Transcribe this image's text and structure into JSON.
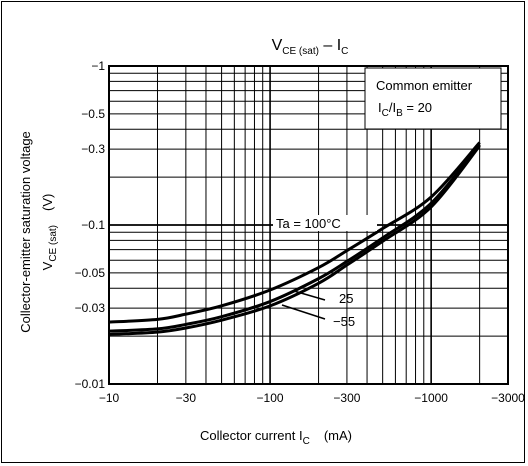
{
  "chart_data": {
    "type": "line",
    "title_main": "V",
    "title_sub": "CE (sat)",
    "title_rest": " – I",
    "title_sub2": "C",
    "xlabel_main": "Collector current  I",
    "xlabel_sub": "C",
    "xlabel_unit": "(mA)",
    "ylabel_line1": "Collector-emitter saturation voltage",
    "ylabel_line2_main": "V",
    "ylabel_line2_sub": "CE (sat)",
    "ylabel_line2_unit": "(V)",
    "x_scale": "log",
    "y_scale": "log",
    "xlim": [
      -10,
      -3000
    ],
    "ylim": [
      -0.01,
      -1
    ],
    "x_ticks": [
      {
        "value": -10,
        "label": "−10"
      },
      {
        "value": -30,
        "label": "−30"
      },
      {
        "value": -100,
        "label": "−100"
      },
      {
        "value": -300,
        "label": "−300"
      },
      {
        "value": -1000,
        "label": "−1000"
      },
      {
        "value": -3000,
        "label": "−3000"
      }
    ],
    "y_ticks": [
      {
        "value": -1,
        "label": "−1"
      },
      {
        "value": -0.5,
        "label": "−0.5"
      },
      {
        "value": -0.3,
        "label": "−0.3"
      },
      {
        "value": -0.1,
        "label": "−0.1"
      },
      {
        "value": -0.05,
        "label": "−0.05"
      },
      {
        "value": -0.03,
        "label": "−0.03"
      },
      {
        "value": -0.01,
        "label": "−0.01"
      }
    ],
    "grid": true,
    "legend_box": {
      "line1": "Common emitter",
      "line2_a": "I",
      "line2_b": "C",
      "line2_c": "/I",
      "line2_d": "B",
      "line2_e": " = 20"
    },
    "series": [
      {
        "name": "Ta = 100°C",
        "x": [
          -10,
          -20,
          -30,
          -50,
          -100,
          -200,
          -300,
          -500,
          -1000,
          -2000
        ],
        "y": [
          -0.0245,
          -0.0255,
          -0.0275,
          -0.031,
          -0.039,
          -0.054,
          -0.069,
          -0.095,
          -0.15,
          -0.33
        ]
      },
      {
        "name": "25",
        "x": [
          -10,
          -20,
          -30,
          -50,
          -100,
          -200,
          -300,
          -500,
          -1000,
          -2000
        ],
        "y": [
          -0.0215,
          -0.0222,
          -0.0237,
          -0.0265,
          -0.033,
          -0.046,
          -0.059,
          -0.083,
          -0.137,
          -0.32
        ]
      },
      {
        "name": "−55",
        "x": [
          -10,
          -20,
          -30,
          -50,
          -100,
          -200,
          -300,
          -500,
          -1000,
          -2000
        ],
        "y": [
          -0.0205,
          -0.0212,
          -0.0225,
          -0.0252,
          -0.031,
          -0.043,
          -0.056,
          -0.079,
          -0.13,
          -0.315
        ]
      }
    ],
    "annotations": [
      {
        "text": "Ta = 100°C",
        "target_series": 0
      },
      {
        "text": "25",
        "target_series": 1
      },
      {
        "text": "−55",
        "target_series": 2
      }
    ]
  }
}
